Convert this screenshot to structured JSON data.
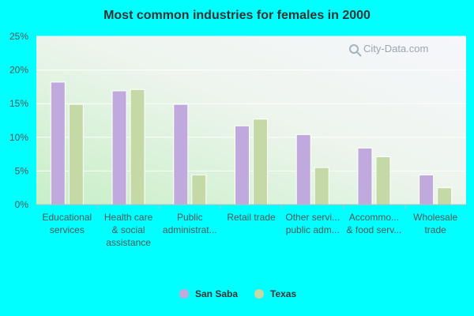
{
  "chart_data": {
    "type": "bar",
    "title": "Most common industries for females in 2000",
    "categories": [
      [
        "Educational",
        "services"
      ],
      [
        "Health care",
        "& social",
        "assistance"
      ],
      [
        "Public",
        "administrat..."
      ],
      [
        "Retail trade"
      ],
      [
        "Other servi...",
        "public adm..."
      ],
      [
        "Accommo...",
        "& food serv..."
      ],
      [
        "Wholesale",
        "trade"
      ]
    ],
    "series": [
      {
        "name": "San Saba",
        "color": "#c0a9dc",
        "values": [
          18.2,
          16.9,
          14.9,
          11.7,
          10.4,
          8.4,
          4.4
        ]
      },
      {
        "name": "Texas",
        "color": "#c5d9a6",
        "values": [
          14.9,
          17.1,
          4.4,
          12.7,
          5.5,
          7.1,
          2.5
        ]
      }
    ],
    "yticks": [
      "0%",
      "5%",
      "10%",
      "15%",
      "20%",
      "25%"
    ],
    "ylim": [
      0,
      25
    ],
    "legend_position": "bottom",
    "watermark": "City-Data.com"
  }
}
